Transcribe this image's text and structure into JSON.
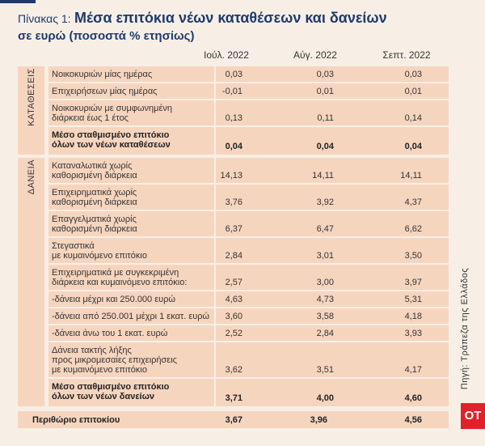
{
  "header": {
    "label": "Πίνακας 1:",
    "title": "Μέσα επιτόκια νέων καταθέσεων και δανείων",
    "subtitle": "σε ευρώ (ποσοστά % ετησίως)"
  },
  "table": {
    "columns": [
      "Ιούλ. 2022",
      "Αύγ. 2022",
      "Σεπτ. 2022"
    ],
    "sections": [
      {
        "name": "ΚΑΤΑΘΕΣΕΙΣ",
        "rows": [
          {
            "label": [
              "Νοικοκυριών μίας ημέρας"
            ],
            "values": [
              "0,03",
              "0,03",
              "0,03"
            ]
          },
          {
            "label": [
              "Επιχειρήσεων μίας ημέρας"
            ],
            "values": [
              "-0,01",
              "0,01",
              "0,01"
            ]
          },
          {
            "label": [
              "Νοικοκυριών με συμφωνημένη",
              "διάρκεια έως 1 έτος"
            ],
            "values": [
              "0,13",
              "0,11",
              "0,14"
            ]
          },
          {
            "label": [
              "Μέσο σταθμισμένο επιτόκιο",
              "όλων των νέων καταθέσεων"
            ],
            "values": [
              "0,04",
              "0,04",
              "0,04"
            ],
            "bold": true
          }
        ]
      },
      {
        "name": "ΔΑΝΕΙΑ",
        "rows": [
          {
            "label": [
              "Καταναλωτικά χωρίς",
              "καθορισμένη διάρκεια"
            ],
            "values": [
              "14,13",
              "14,11",
              "14,11"
            ]
          },
          {
            "label": [
              "Επιχειρηματικά χωρίς",
              "καθορισμένη διάρκεια"
            ],
            "values": [
              "3,76",
              "3,92",
              "4,37"
            ]
          },
          {
            "label": [
              "Επαγγελματικά χωρίς",
              "καθορισμένη διάρκεια"
            ],
            "values": [
              "6,37",
              "6,47",
              "6,62"
            ]
          },
          {
            "label": [
              "Στεγαστικά",
              "με κυμαινόμενο επιτόκιο"
            ],
            "values": [
              "2,84",
              "3,01",
              "3,50"
            ]
          },
          {
            "label": [
              "Επιχειρηματικά με συγκεκριμένη",
              "διάρκεια και κυμαινόμενο επιτόκιο:"
            ],
            "values": [
              "2,57",
              "3,00",
              "3,97"
            ]
          },
          {
            "label": [
              "-δάνεια μέχρι και 250.000 ευρώ"
            ],
            "values": [
              "4,63",
              "4,73",
              "5,31"
            ]
          },
          {
            "label": [
              "-δάνεια από 250.001 μέχρι 1 εκατ. ευρώ"
            ],
            "values": [
              "3,60",
              "3,58",
              "4,18"
            ]
          },
          {
            "label": [
              "-δάνεια άνω του 1 εκατ. ευρώ"
            ],
            "values": [
              "2,52",
              "2,84",
              "3,93"
            ]
          },
          {
            "label": [
              "Δάνεια τακτής λήξης",
              "προς μικρομεσαίες επιχειρήσεις",
              "με κυμαινόμενο επιτόκιο"
            ],
            "values": [
              "3,62",
              "3,51",
              "4,17"
            ]
          },
          {
            "label": [
              "Μέσο σταθμισμένο επιτόκιο",
              "όλων των νέων δανείων"
            ],
            "values": [
              "3,71",
              "4,00",
              "4,60"
            ],
            "bold": true
          }
        ]
      }
    ]
  },
  "footer": {
    "label": "Περιθώριο επιτοκίου",
    "values": [
      "3,67",
      "3,96",
      "4,56"
    ]
  },
  "source": "Πηγή: Τράπεζα της Ελλάδος",
  "logo": "OT"
}
